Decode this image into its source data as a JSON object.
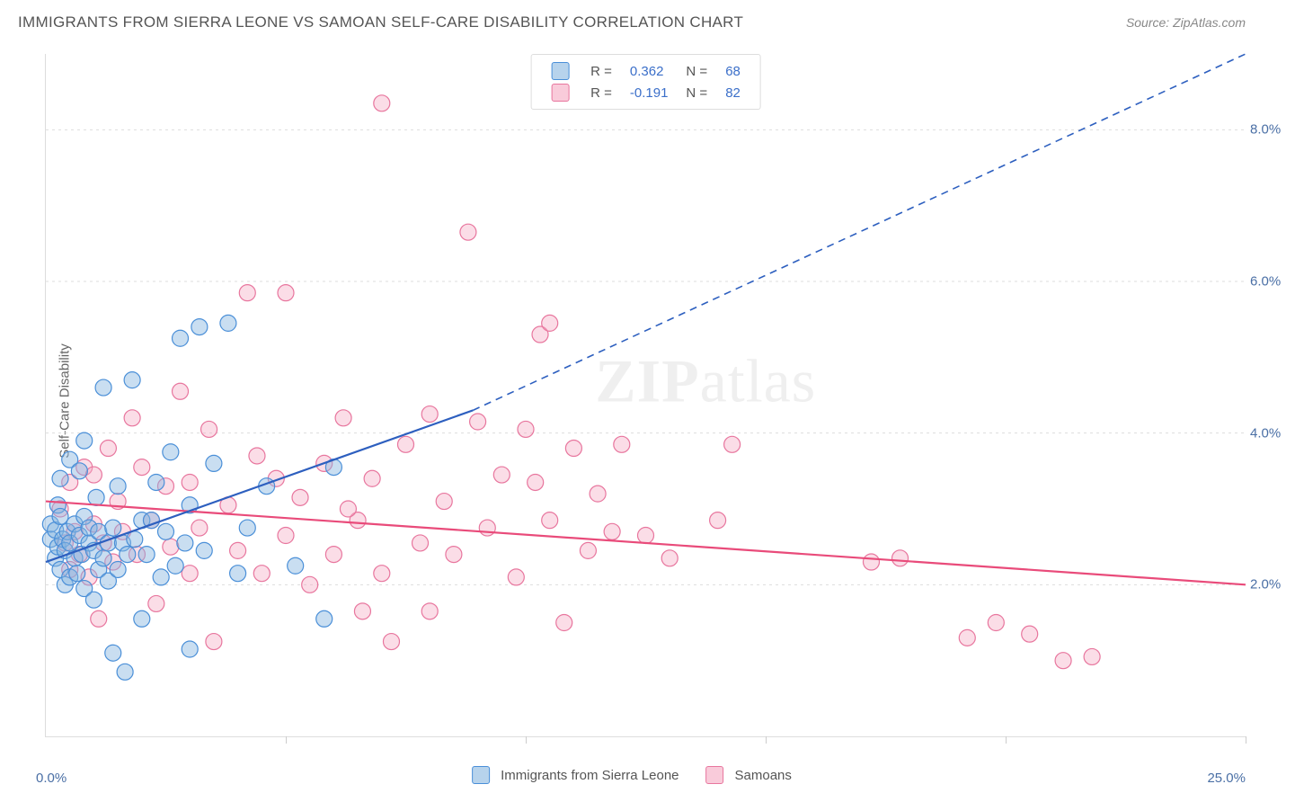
{
  "header": {
    "title": "IMMIGRANTS FROM SIERRA LEONE VS SAMOAN SELF-CARE DISABILITY CORRELATION CHART",
    "source": "Source: ZipAtlas.com"
  },
  "watermark": {
    "zip": "ZIP",
    "atlas": "atlas"
  },
  "chart": {
    "type": "scatter",
    "background_color": "#ffffff",
    "grid_color": "#dddddd",
    "xlabel": "",
    "ylabel": "Self-Care Disability",
    "xlim": [
      0,
      25
    ],
    "ylim": [
      0,
      9
    ],
    "xmin_label": "0.0%",
    "xmax_label": "25.0%",
    "yticks": [
      2,
      4,
      6,
      8
    ],
    "ytick_labels": [
      "2.0%",
      "4.0%",
      "6.0%",
      "8.0%"
    ],
    "xtick_positions": [
      5,
      10,
      15,
      20,
      25
    ],
    "marker_radius": 9,
    "series_blue": {
      "label": "Immigrants from Sierra Leone",
      "fill": "rgba(135,182,224,0.45)",
      "stroke": "#4a8fd8",
      "R": "0.362",
      "N": "68",
      "trend_solid": {
        "x1": 0,
        "y1": 2.3,
        "x2": 8.9,
        "y2": 4.3
      },
      "trend_dash": {
        "x1": 8.9,
        "y1": 4.3,
        "x2": 25,
        "y2": 9.0
      },
      "points": [
        [
          0.1,
          2.6
        ],
        [
          0.1,
          2.8
        ],
        [
          0.2,
          2.35
        ],
        [
          0.2,
          2.72
        ],
        [
          0.25,
          2.5
        ],
        [
          0.25,
          3.05
        ],
        [
          0.3,
          2.2
        ],
        [
          0.3,
          2.9
        ],
        [
          0.3,
          3.4
        ],
        [
          0.35,
          2.6
        ],
        [
          0.4,
          2.0
        ],
        [
          0.4,
          2.45
        ],
        [
          0.45,
          2.7
        ],
        [
          0.5,
          2.1
        ],
        [
          0.5,
          2.55
        ],
        [
          0.5,
          3.65
        ],
        [
          0.6,
          2.35
        ],
        [
          0.6,
          2.8
        ],
        [
          0.65,
          2.15
        ],
        [
          0.7,
          2.65
        ],
        [
          0.7,
          3.5
        ],
        [
          0.75,
          2.4
        ],
        [
          0.8,
          1.95
        ],
        [
          0.8,
          2.9
        ],
        [
          0.8,
          3.9
        ],
        [
          0.9,
          2.55
        ],
        [
          0.9,
          2.75
        ],
        [
          1.0,
          1.8
        ],
        [
          1.0,
          2.45
        ],
        [
          1.05,
          3.15
        ],
        [
          1.1,
          2.2
        ],
        [
          1.1,
          2.7
        ],
        [
          1.2,
          2.35
        ],
        [
          1.2,
          4.6
        ],
        [
          1.3,
          2.05
        ],
        [
          1.3,
          2.55
        ],
        [
          1.4,
          2.75
        ],
        [
          1.4,
          1.1
        ],
        [
          1.5,
          2.2
        ],
        [
          1.5,
          3.3
        ],
        [
          1.6,
          2.55
        ],
        [
          1.65,
          0.85
        ],
        [
          1.7,
          2.4
        ],
        [
          1.8,
          4.7
        ],
        [
          1.85,
          2.6
        ],
        [
          2.0,
          1.55
        ],
        [
          2.0,
          2.85
        ],
        [
          2.1,
          2.4
        ],
        [
          2.2,
          2.85
        ],
        [
          2.3,
          3.35
        ],
        [
          2.4,
          2.1
        ],
        [
          2.5,
          2.7
        ],
        [
          2.6,
          3.75
        ],
        [
          2.7,
          2.25
        ],
        [
          2.8,
          5.25
        ],
        [
          2.9,
          2.55
        ],
        [
          3.0,
          1.15
        ],
        [
          3.0,
          3.05
        ],
        [
          3.2,
          5.4
        ],
        [
          3.3,
          2.45
        ],
        [
          3.5,
          3.6
        ],
        [
          3.8,
          5.45
        ],
        [
          4.0,
          2.15
        ],
        [
          4.2,
          2.75
        ],
        [
          4.6,
          3.3
        ],
        [
          5.2,
          2.25
        ],
        [
          5.8,
          1.55
        ],
        [
          6.0,
          3.55
        ]
      ]
    },
    "series_pink": {
      "label": "Samoans",
      "fill": "rgba(245,169,194,0.4)",
      "stroke": "#e8769e",
      "R": "-0.191",
      "N": "82",
      "trend": {
        "x1": 0,
        "y1": 3.1,
        "x2": 25,
        "y2": 2.0
      },
      "points": [
        [
          0.3,
          3.0
        ],
        [
          0.4,
          2.55
        ],
        [
          0.5,
          2.2
        ],
        [
          0.5,
          3.35
        ],
        [
          0.6,
          2.7
        ],
        [
          0.7,
          2.4
        ],
        [
          0.8,
          3.55
        ],
        [
          0.9,
          2.1
        ],
        [
          1.0,
          2.8
        ],
        [
          1.0,
          3.45
        ],
        [
          1.1,
          1.55
        ],
        [
          1.2,
          2.55
        ],
        [
          1.3,
          3.8
        ],
        [
          1.4,
          2.3
        ],
        [
          1.5,
          3.1
        ],
        [
          1.6,
          2.7
        ],
        [
          1.8,
          4.2
        ],
        [
          1.9,
          2.4
        ],
        [
          2.0,
          3.55
        ],
        [
          2.2,
          2.85
        ],
        [
          2.3,
          1.75
        ],
        [
          2.5,
          3.3
        ],
        [
          2.6,
          2.5
        ],
        [
          2.8,
          4.55
        ],
        [
          3.0,
          2.15
        ],
        [
          3.0,
          3.35
        ],
        [
          3.2,
          2.75
        ],
        [
          3.4,
          4.05
        ],
        [
          3.5,
          1.25
        ],
        [
          3.8,
          3.05
        ],
        [
          4.0,
          2.45
        ],
        [
          4.2,
          5.85
        ],
        [
          4.4,
          3.7
        ],
        [
          4.5,
          2.15
        ],
        [
          4.8,
          3.4
        ],
        [
          5.0,
          2.65
        ],
        [
          5.0,
          5.85
        ],
        [
          5.3,
          3.15
        ],
        [
          5.5,
          2.0
        ],
        [
          5.8,
          3.6
        ],
        [
          6.0,
          2.4
        ],
        [
          6.2,
          4.2
        ],
        [
          6.5,
          2.85
        ],
        [
          6.6,
          1.65
        ],
        [
          6.8,
          3.4
        ],
        [
          7.0,
          8.35
        ],
        [
          7.0,
          2.15
        ],
        [
          7.2,
          1.25
        ],
        [
          7.5,
          3.85
        ],
        [
          7.8,
          2.55
        ],
        [
          8.0,
          4.25
        ],
        [
          8.0,
          1.65
        ],
        [
          8.3,
          3.1
        ],
        [
          8.5,
          2.4
        ],
        [
          8.8,
          6.65
        ],
        [
          9.0,
          4.15
        ],
        [
          9.2,
          2.75
        ],
        [
          9.5,
          3.45
        ],
        [
          9.8,
          2.1
        ],
        [
          10.0,
          4.05
        ],
        [
          10.3,
          5.3
        ],
        [
          10.5,
          2.85
        ],
        [
          10.5,
          5.45
        ],
        [
          10.8,
          1.5
        ],
        [
          11.0,
          3.8
        ],
        [
          11.3,
          2.45
        ],
        [
          11.5,
          3.2
        ],
        [
          12.0,
          3.85
        ],
        [
          12.5,
          2.65
        ],
        [
          13.0,
          2.35
        ],
        [
          14.0,
          2.85
        ],
        [
          14.3,
          3.85
        ],
        [
          17.2,
          2.3
        ],
        [
          17.8,
          2.35
        ],
        [
          19.2,
          1.3
        ],
        [
          19.8,
          1.5
        ],
        [
          20.5,
          1.35
        ],
        [
          21.2,
          1.0
        ],
        [
          21.8,
          1.05
        ],
        [
          10.2,
          3.35
        ],
        [
          11.8,
          2.7
        ],
        [
          6.3,
          3.0
        ]
      ]
    }
  },
  "legend": {
    "box": {
      "r_label": "R =",
      "n_label": "N ="
    },
    "bottom": {
      "blue": "Immigrants from Sierra Leone",
      "pink": "Samoans"
    }
  }
}
